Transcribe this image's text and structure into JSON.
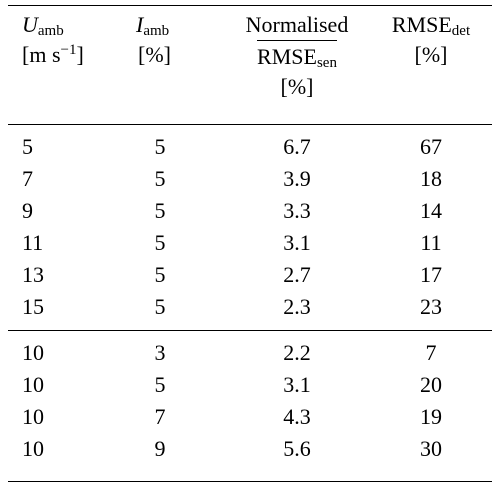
{
  "header": {
    "u_amb": {
      "symbol": "U",
      "sub": "amb",
      "unit_prefix": "[m s",
      "unit_sup": "−1",
      "unit_suffix": "]"
    },
    "i_amb": {
      "symbol": "I",
      "sub": "amb",
      "unit": "[%]"
    },
    "normalised": {
      "line1": "Normalised",
      "line2_main": "RMSE",
      "line2_sub": "sen",
      "unit": "[%]"
    },
    "rmse_det": {
      "main": "RMSE",
      "sub": "det",
      "unit": "[%]"
    }
  },
  "group1": [
    {
      "u": "5",
      "i": "5",
      "norm": "6.7",
      "det": "67"
    },
    {
      "u": "7",
      "i": "5",
      "norm": "3.9",
      "det": "18"
    },
    {
      "u": "9",
      "i": "5",
      "norm": "3.3",
      "det": "14"
    },
    {
      "u": "11",
      "i": "5",
      "norm": "3.1",
      "det": "11"
    },
    {
      "u": "13",
      "i": "5",
      "norm": "2.7",
      "det": "17"
    },
    {
      "u": "15",
      "i": "5",
      "norm": "2.3",
      "det": "23"
    }
  ],
  "group2": [
    {
      "u": "10",
      "i": "3",
      "norm": "2.2",
      "det": "7"
    },
    {
      "u": "10",
      "i": "5",
      "norm": "3.1",
      "det": "20"
    },
    {
      "u": "10",
      "i": "7",
      "norm": "4.3",
      "det": "19"
    },
    {
      "u": "10",
      "i": "9",
      "norm": "5.6",
      "det": "30"
    }
  ]
}
